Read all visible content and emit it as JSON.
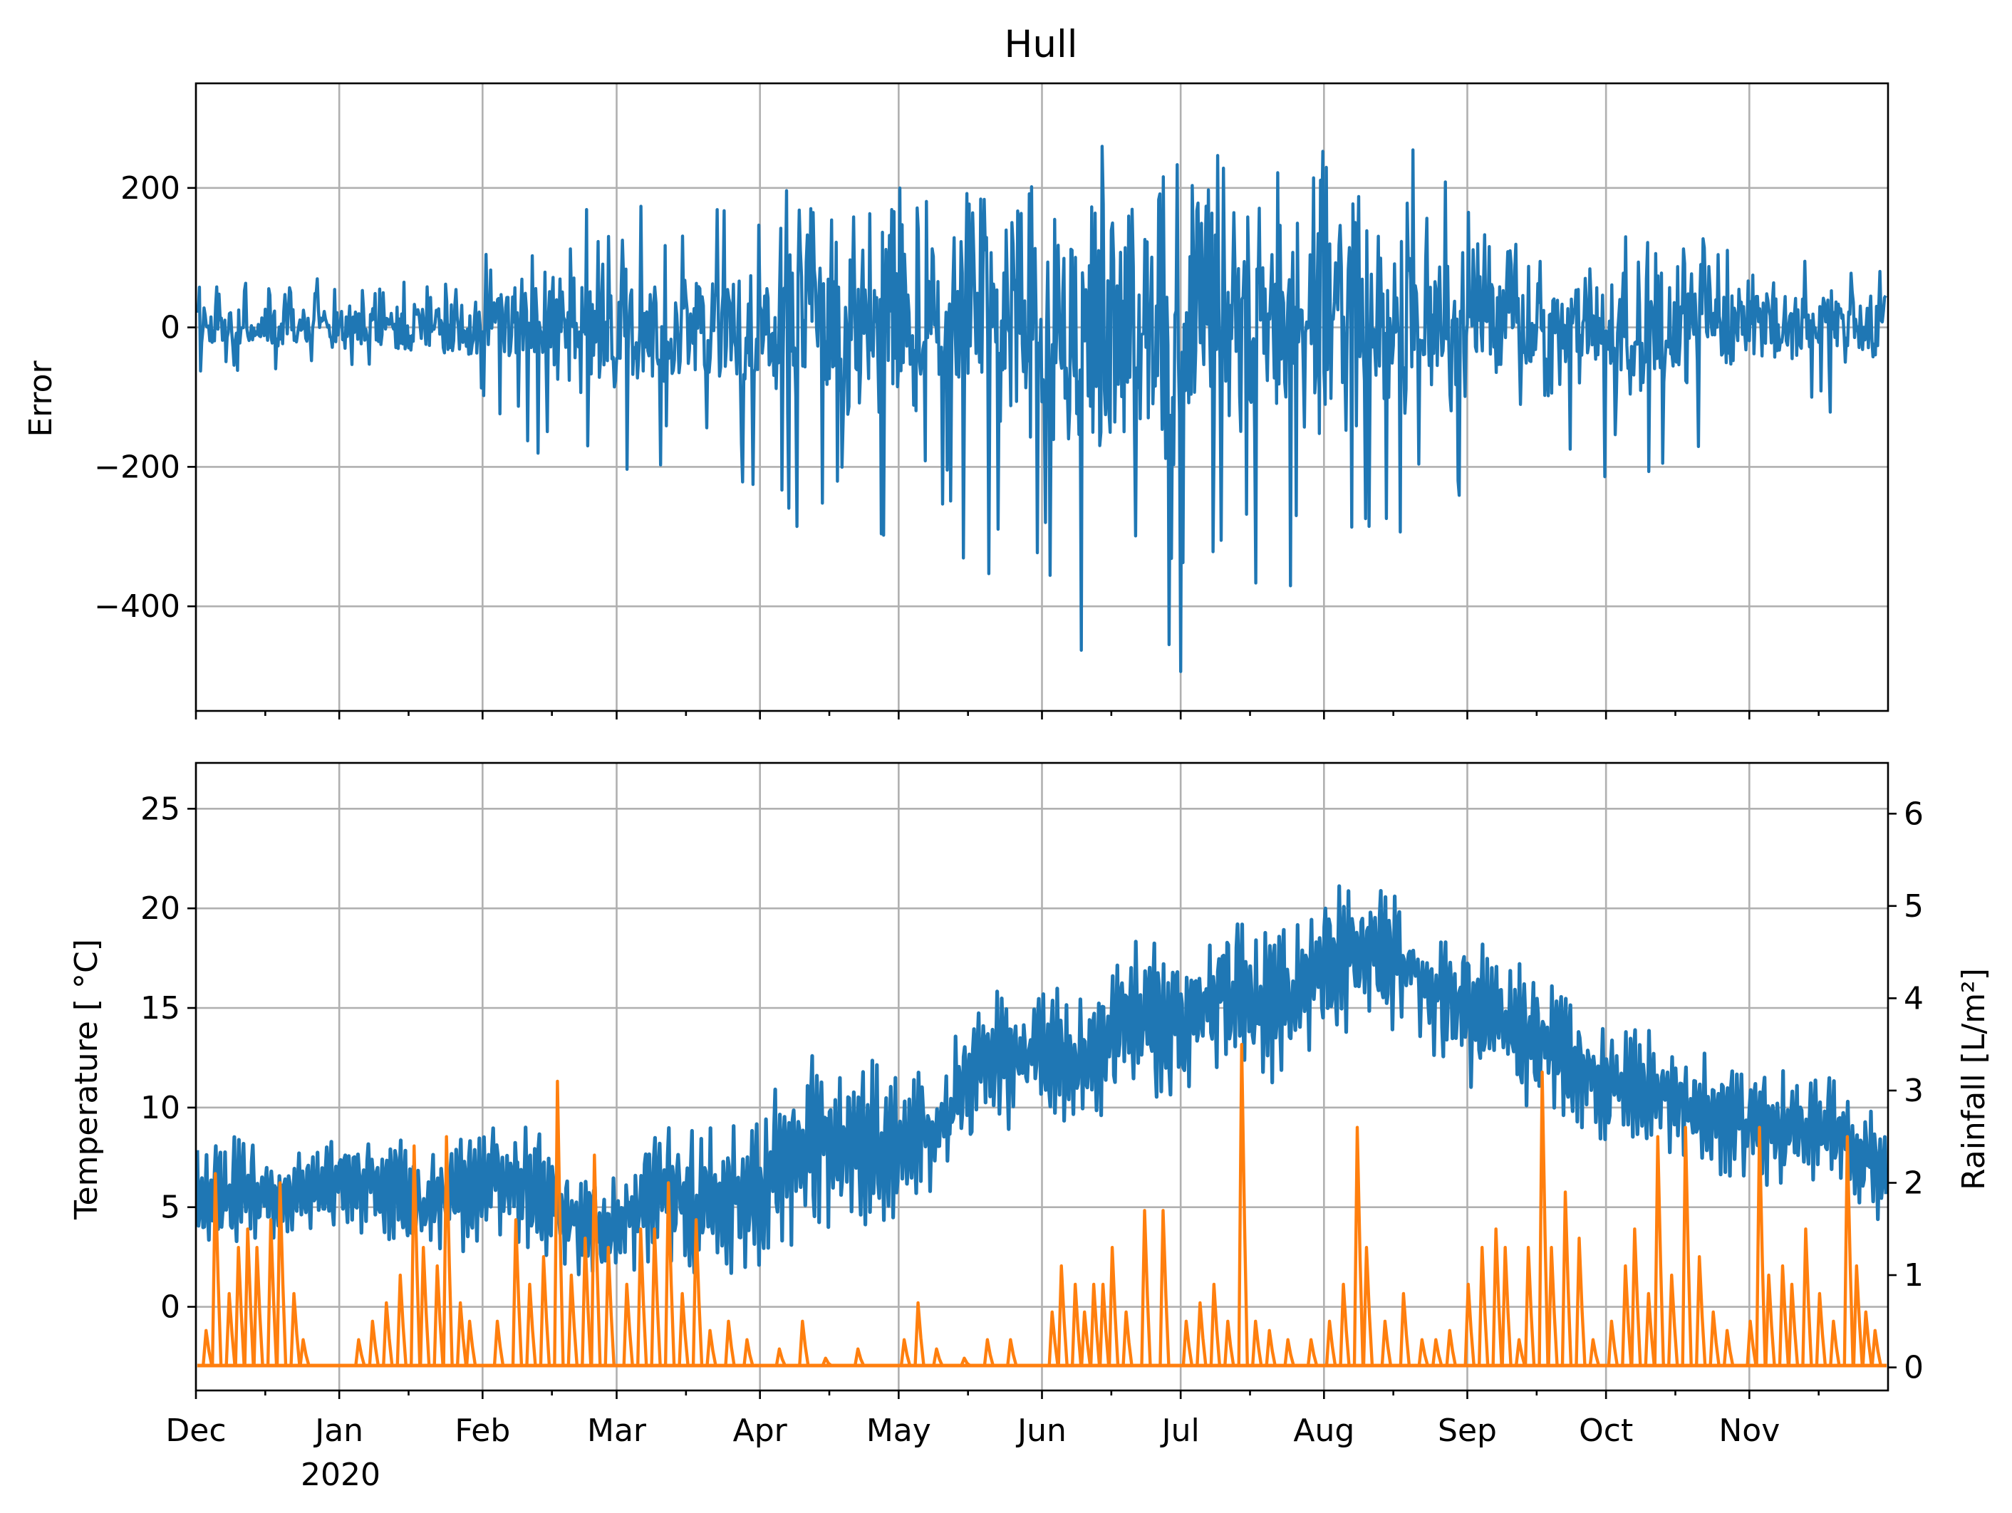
{
  "chart_data": [
    {
      "type": "line",
      "title": "Hull",
      "xlabel": "",
      "ylabel": "Error",
      "x_range": [
        "2019-12-01",
        "2020-11-30"
      ],
      "ylim": [
        -550,
        350
      ],
      "yticks": [
        200,
        0,
        -200,
        -400
      ],
      "ytick_labels": [
        "200",
        "0",
        "−200",
        "−400"
      ],
      "grid": true,
      "x_tick_labels_visible": false,
      "series": [
        {
          "color": "#1f77b4",
          "x": [
            "2019-12-01",
            "2019-12-10",
            "2019-12-20",
            "2020-01-01",
            "2020-01-10",
            "2020-01-20",
            "2020-02-01",
            "2020-02-10",
            "2020-02-20",
            "2020-03-01",
            "2020-03-10",
            "2020-03-20",
            "2020-04-01",
            "2020-04-10",
            "2020-04-20",
            "2020-05-01",
            "2020-05-10",
            "2020-05-20",
            "2020-06-01",
            "2020-06-10",
            "2020-06-20",
            "2020-07-01",
            "2020-07-10",
            "2020-07-20",
            "2020-08-01",
            "2020-08-10",
            "2020-08-20",
            "2020-09-01",
            "2020-09-10",
            "2020-09-20",
            "2020-10-01",
            "2020-10-10",
            "2020-10-20",
            "2020-11-01",
            "2020-11-10",
            "2020-11-20",
            "2020-11-30"
          ],
          "amp_upper": [
            60,
            65,
            55,
            80,
            70,
            65,
            110,
            120,
            185,
            185,
            180,
            170,
            200,
            210,
            230,
            215,
            200,
            210,
            240,
            300,
            250,
            260,
            250,
            240,
            260,
            260,
            270,
            200,
            150,
            120,
            135,
            150,
            140,
            120,
            110,
            90,
            80
          ],
          "amp_lower": [
            80,
            75,
            70,
            60,
            70,
            90,
            120,
            170,
            235,
            240,
            200,
            180,
            250,
            340,
            330,
            300,
            320,
            370,
            440,
            470,
            430,
            510,
            410,
            400,
            380,
            360,
            320,
            300,
            290,
            240,
            230,
            260,
            200,
            190,
            170,
            140,
            120
          ]
        }
      ]
    },
    {
      "type": "line",
      "xlabel": "",
      "ylabel": "Temperature [$^\\circ$C]",
      "ylabel_text": "Temperature [ °C]",
      "ylabel_right": "Rainfall [L/m²]",
      "x_range": [
        "2019-12-01",
        "2020-11-30"
      ],
      "x_tick_labels": [
        "Dec",
        "Jan",
        "Feb",
        "Mar",
        "Apr",
        "May",
        "Jun",
        "Jul",
        "Aug",
        "Sep",
        "Oct",
        "Nov"
      ],
      "x_tick_dates": [
        "2019-12-01",
        "2020-01-01",
        "2020-02-01",
        "2020-03-01",
        "2020-04-01",
        "2020-05-01",
        "2020-06-01",
        "2020-07-01",
        "2020-08-01",
        "2020-09-01",
        "2020-10-01",
        "2020-11-01"
      ],
      "x_year_label": "2020",
      "ylim": [
        -4.2,
        27.3
      ],
      "yticks": [
        25,
        20,
        15,
        10,
        5,
        0
      ],
      "ytick_labels": [
        "25",
        "20",
        "15",
        "10",
        "5",
        "0"
      ],
      "ylim_right": [
        -0.25,
        6.55
      ],
      "yticks_right": [
        6,
        5,
        4,
        3,
        2,
        1,
        0
      ],
      "ytick_labels_right": [
        "6",
        "5",
        "4",
        "3",
        "2",
        "1",
        "0"
      ],
      "grid": true,
      "series": [
        {
          "axis": "left",
          "color": "#1f77b4",
          "x": [
            "2019-12-01",
            "2019-12-10",
            "2019-12-20",
            "2020-01-01",
            "2020-01-10",
            "2020-01-20",
            "2020-02-01",
            "2020-02-10",
            "2020-02-20",
            "2020-03-01",
            "2020-03-10",
            "2020-03-20",
            "2020-04-01",
            "2020-04-10",
            "2020-04-20",
            "2020-05-01",
            "2020-05-10",
            "2020-05-20",
            "2020-06-01",
            "2020-06-10",
            "2020-06-20",
            "2020-07-01",
            "2020-07-10",
            "2020-07-20",
            "2020-08-01",
            "2020-08-10",
            "2020-08-20",
            "2020-09-01",
            "2020-09-10",
            "2020-09-20",
            "2020-10-01",
            "2020-10-10",
            "2020-10-20",
            "2020-11-01",
            "2020-11-10",
            "2020-11-20",
            "2020-11-30"
          ],
          "mean": [
            5,
            6,
            5.5,
            6,
            6.5,
            5,
            6,
            6.5,
            4.5,
            4,
            6,
            5,
            6,
            8,
            8.5,
            8,
            9,
            12,
            13,
            12,
            15,
            14,
            16,
            15,
            17,
            18,
            17,
            15,
            14,
            13,
            11,
            11,
            10,
            9,
            9,
            9,
            7
          ],
          "amplitude": [
            3,
            3,
            2,
            2.5,
            3,
            3,
            3,
            3.5,
            3,
            3,
            3.5,
            4,
            4,
            5,
            4.5,
            4,
            4,
            4,
            3.5,
            3.5,
            4,
            4.5,
            4,
            4,
            4,
            4,
            3.5,
            4,
            4,
            3.5,
            3,
            3,
            3,
            3,
            3,
            3,
            3
          ]
        },
        {
          "axis": "right",
          "color": "#ff7f0e",
          "baseline": 0.02,
          "spikes": [
            [
              "2019-12-03",
              0.4
            ],
            [
              "2019-12-05",
              2.1
            ],
            [
              "2019-12-08",
              0.8
            ],
            [
              "2019-12-10",
              1.3
            ],
            [
              "2019-12-12",
              1.5
            ],
            [
              "2019-12-14",
              1.3
            ],
            [
              "2019-12-17",
              1.6
            ],
            [
              "2019-12-19",
              2.0
            ],
            [
              "2019-12-22",
              0.8
            ],
            [
              "2019-12-24",
              0.3
            ],
            [
              "2020-01-05",
              0.3
            ],
            [
              "2020-01-08",
              0.5
            ],
            [
              "2020-01-11",
              0.7
            ],
            [
              "2020-01-14",
              1.0
            ],
            [
              "2020-01-17",
              2.4
            ],
            [
              "2020-01-19",
              1.3
            ],
            [
              "2020-01-22",
              1.1
            ],
            [
              "2020-01-24",
              2.5
            ],
            [
              "2020-01-27",
              0.7
            ],
            [
              "2020-01-29",
              0.5
            ],
            [
              "2020-02-04",
              0.5
            ],
            [
              "2020-02-08",
              1.6
            ],
            [
              "2020-02-11",
              0.9
            ],
            [
              "2020-02-14",
              1.2
            ],
            [
              "2020-02-17",
              3.1
            ],
            [
              "2020-02-20",
              1.0
            ],
            [
              "2020-02-23",
              1.4
            ],
            [
              "2020-02-25",
              2.3
            ],
            [
              "2020-02-28",
              1.3
            ],
            [
              "2020-03-03",
              0.9
            ],
            [
              "2020-03-06",
              1.5
            ],
            [
              "2020-03-09",
              1.5
            ],
            [
              "2020-03-12",
              2.0
            ],
            [
              "2020-03-15",
              0.8
            ],
            [
              "2020-03-18",
              1.6
            ],
            [
              "2020-03-21",
              0.4
            ],
            [
              "2020-03-25",
              0.5
            ],
            [
              "2020-03-29",
              0.3
            ],
            [
              "2020-04-05",
              0.2
            ],
            [
              "2020-04-10",
              0.5
            ],
            [
              "2020-04-15",
              0.1
            ],
            [
              "2020-04-22",
              0.2
            ],
            [
              "2020-05-02",
              0.3
            ],
            [
              "2020-05-05",
              0.7
            ],
            [
              "2020-05-09",
              0.2
            ],
            [
              "2020-05-15",
              0.1
            ],
            [
              "2020-05-20",
              0.3
            ],
            [
              "2020-05-25",
              0.3
            ],
            [
              "2020-06-03",
              0.6
            ],
            [
              "2020-06-05",
              1.1
            ],
            [
              "2020-06-08",
              0.9
            ],
            [
              "2020-06-10",
              0.6
            ],
            [
              "2020-06-12",
              0.9
            ],
            [
              "2020-06-14",
              0.9
            ],
            [
              "2020-06-16",
              1.3
            ],
            [
              "2020-06-19",
              0.6
            ],
            [
              "2020-06-23",
              1.7
            ],
            [
              "2020-06-27",
              1.7
            ],
            [
              "2020-07-02",
              0.5
            ],
            [
              "2020-07-05",
              0.7
            ],
            [
              "2020-07-08",
              0.9
            ],
            [
              "2020-07-11",
              0.5
            ],
            [
              "2020-07-14",
              3.5
            ],
            [
              "2020-07-17",
              0.5
            ],
            [
              "2020-07-20",
              0.4
            ],
            [
              "2020-07-24",
              0.3
            ],
            [
              "2020-07-29",
              0.3
            ],
            [
              "2020-08-02",
              0.5
            ],
            [
              "2020-08-05",
              0.9
            ],
            [
              "2020-08-08",
              2.6
            ],
            [
              "2020-08-10",
              1.3
            ],
            [
              "2020-08-14",
              0.5
            ],
            [
              "2020-08-18",
              0.8
            ],
            [
              "2020-08-22",
              0.3
            ],
            [
              "2020-08-25",
              0.3
            ],
            [
              "2020-08-28",
              0.4
            ],
            [
              "2020-09-01",
              0.9
            ],
            [
              "2020-09-04",
              1.3
            ],
            [
              "2020-09-07",
              1.5
            ],
            [
              "2020-09-09",
              1.3
            ],
            [
              "2020-09-12",
              0.3
            ],
            [
              "2020-09-14",
              1.3
            ],
            [
              "2020-09-17",
              3.2
            ],
            [
              "2020-09-19",
              1.3
            ],
            [
              "2020-09-22",
              1.9
            ],
            [
              "2020-09-25",
              1.4
            ],
            [
              "2020-09-28",
              0.3
            ],
            [
              "2020-10-02",
              0.5
            ],
            [
              "2020-10-05",
              1.1
            ],
            [
              "2020-10-07",
              1.5
            ],
            [
              "2020-10-10",
              0.8
            ],
            [
              "2020-10-12",
              2.5
            ],
            [
              "2020-10-15",
              1.0
            ],
            [
              "2020-10-18",
              2.6
            ],
            [
              "2020-10-21",
              1.2
            ],
            [
              "2020-10-24",
              0.6
            ],
            [
              "2020-10-27",
              0.4
            ],
            [
              "2020-11-01",
              0.5
            ],
            [
              "2020-11-03",
              2.6
            ],
            [
              "2020-11-05",
              1.0
            ],
            [
              "2020-11-08",
              1.1
            ],
            [
              "2020-11-10",
              0.9
            ],
            [
              "2020-11-13",
              1.5
            ],
            [
              "2020-11-16",
              0.8
            ],
            [
              "2020-11-19",
              0.5
            ],
            [
              "2020-11-22",
              2.5
            ],
            [
              "2020-11-24",
              1.1
            ],
            [
              "2020-11-26",
              0.6
            ],
            [
              "2020-11-28",
              0.4
            ]
          ]
        }
      ]
    }
  ]
}
